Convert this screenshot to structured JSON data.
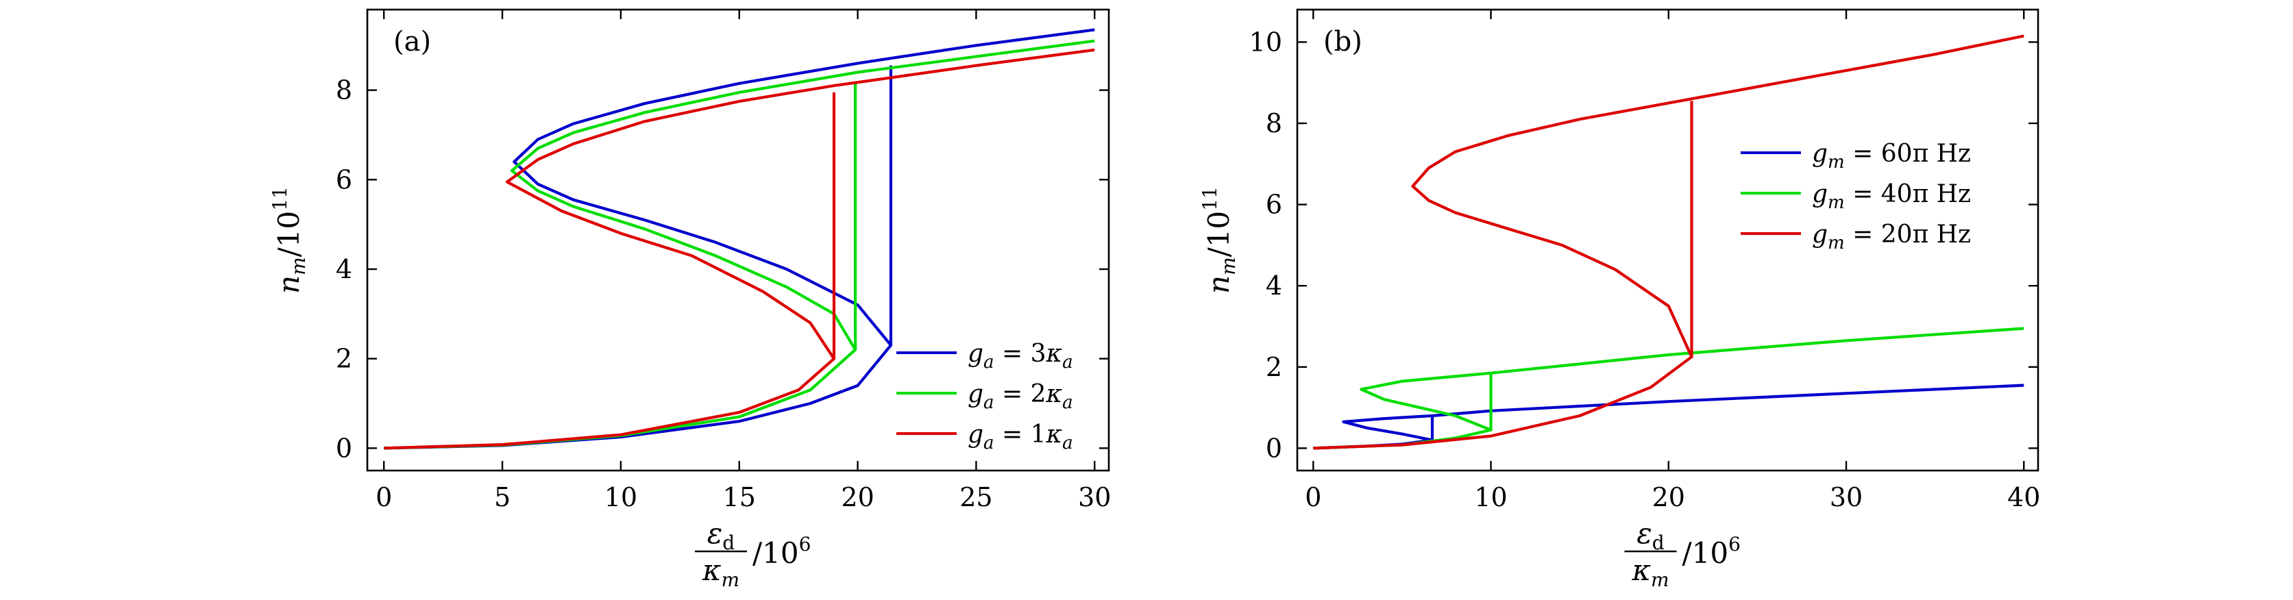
{
  "chart_data": [
    {
      "type": "line",
      "panel_label": "(a)",
      "xlabel": {
        "num": "ε",
        "num_sub": "d",
        "den": "κ",
        "den_sub": "m",
        "suffix": "/10",
        "suffix_sup": "6"
      },
      "ylabel": {
        "main": "n",
        "sub": "m",
        "suffix": "/10",
        "sup": "11"
      },
      "xlim": [
        -0.7,
        30.6
      ],
      "ylim": [
        -0.5,
        9.8
      ],
      "x_ticks": [
        0,
        5,
        10,
        15,
        20,
        25,
        30
      ],
      "y_ticks": [
        0,
        2,
        4,
        6,
        8
      ],
      "legend_position": "lower-right",
      "series": [
        {
          "name": "g_a = 3κ_a",
          "label": {
            "v": "g",
            "s": "a",
            "mid": " = 3",
            "k": "κ",
            "ks": "a"
          },
          "color": "#0000cc",
          "x": [
            0,
            5,
            10,
            15,
            18,
            20,
            21.4,
            20,
            17,
            14,
            11,
            8,
            6.5,
            5.5,
            6.5,
            8,
            11,
            15,
            20,
            25,
            30
          ],
          "y": [
            0,
            0.06,
            0.25,
            0.6,
            1.0,
            1.4,
            2.3,
            3.2,
            4.0,
            4.6,
            5.1,
            5.55,
            5.9,
            6.4,
            6.9,
            7.25,
            7.7,
            8.15,
            8.6,
            9.0,
            9.35
          ],
          "jump": {
            "x": 21.4,
            "y_from": 2.3,
            "y_to": 8.55
          }
        },
        {
          "name": "g_a = 2κ_a",
          "label": {
            "v": "g",
            "s": "a",
            "mid": " = 2",
            "k": "κ",
            "ks": "a"
          },
          "color": "#00dd00",
          "x": [
            0,
            5,
            10,
            15,
            18,
            19.9,
            19,
            17,
            14,
            11,
            8,
            6.5,
            5.4,
            6.5,
            8,
            11,
            15,
            20,
            25,
            30
          ],
          "y": [
            0,
            0.07,
            0.28,
            0.7,
            1.3,
            2.2,
            3.0,
            3.6,
            4.3,
            4.9,
            5.4,
            5.75,
            6.2,
            6.7,
            7.05,
            7.5,
            7.95,
            8.4,
            8.75,
            9.1
          ],
          "jump": {
            "x": 19.9,
            "y_from": 2.2,
            "y_to": 8.15
          }
        },
        {
          "name": "g_a = 1κ_a",
          "label": {
            "v": "g",
            "s": "a",
            "mid": " = 1",
            "k": "κ",
            "ks": "a"
          },
          "color": "#dd0000",
          "x": [
            0,
            5,
            10,
            15,
            17.5,
            19,
            18,
            16,
            13,
            10,
            7.5,
            5.2,
            6.5,
            8,
            11,
            15,
            19,
            25,
            30
          ],
          "y": [
            0,
            0.08,
            0.3,
            0.8,
            1.3,
            2.0,
            2.8,
            3.5,
            4.3,
            4.8,
            5.3,
            5.95,
            6.45,
            6.8,
            7.3,
            7.75,
            8.1,
            8.55,
            8.9
          ],
          "jump": {
            "x": 19.0,
            "y_from": 2.0,
            "y_to": 7.95
          }
        }
      ]
    },
    {
      "type": "line",
      "panel_label": "(b)",
      "xlabel": {
        "num": "ε",
        "num_sub": "d",
        "den": "κ",
        "den_sub": "m",
        "suffix": "/10",
        "suffix_sup": "6"
      },
      "ylabel": {
        "main": "n",
        "sub": "m",
        "suffix": "/10",
        "sup": "11"
      },
      "xlim": [
        -0.9,
        40.8
      ],
      "ylim": [
        -0.55,
        10.8
      ],
      "x_ticks": [
        0,
        10,
        20,
        30,
        40
      ],
      "y_ticks": [
        0,
        2,
        4,
        6,
        8,
        10
      ],
      "legend_position": "upper-right",
      "series": [
        {
          "name": "g_m = 60π Hz",
          "label": {
            "v": "g",
            "s": "m",
            "mid": " = 60π Hz"
          },
          "color": "#0000cc",
          "x": [
            0,
            3,
            5,
            6.7,
            5,
            3,
            1.7,
            4,
            6.7,
            10,
            20,
            30,
            40
          ],
          "y": [
            0,
            0.05,
            0.1,
            0.2,
            0.35,
            0.5,
            0.65,
            0.73,
            0.8,
            0.92,
            1.15,
            1.35,
            1.55
          ],
          "jump": {
            "x": 6.7,
            "y_from": 0.2,
            "y_to": 0.8
          }
        },
        {
          "name": "g_m = 40π Hz",
          "label": {
            "v": "g",
            "s": "m",
            "mid": " = 40π Hz"
          },
          "color": "#00dd00",
          "x": [
            0,
            5,
            8,
            10,
            8,
            6,
            4,
            2.7,
            5,
            10,
            20,
            30,
            40
          ],
          "y": [
            0,
            0.08,
            0.25,
            0.45,
            0.8,
            1.0,
            1.2,
            1.45,
            1.65,
            1.85,
            2.3,
            2.65,
            2.95
          ],
          "jump": {
            "x": 10,
            "y_from": 0.45,
            "y_to": 1.85
          }
        },
        {
          "name": "g_m = 20π Hz",
          "label": {
            "v": "g",
            "s": "m",
            "mid": " = 20π Hz"
          },
          "color": "#dd0000",
          "x": [
            0,
            5,
            10,
            15,
            19,
            21.3,
            20,
            17,
            14,
            11,
            8,
            6.5,
            5.6,
            6.5,
            8,
            11,
            15,
            20,
            25,
            30,
            35,
            40
          ],
          "y": [
            0,
            0.08,
            0.3,
            0.8,
            1.5,
            2.25,
            3.5,
            4.4,
            5.0,
            5.4,
            5.8,
            6.1,
            6.45,
            6.9,
            7.3,
            7.7,
            8.1,
            8.5,
            8.9,
            9.3,
            9.7,
            10.15
          ],
          "jump": {
            "x": 21.3,
            "y_from": 2.25,
            "y_to": 8.55
          }
        }
      ]
    }
  ]
}
